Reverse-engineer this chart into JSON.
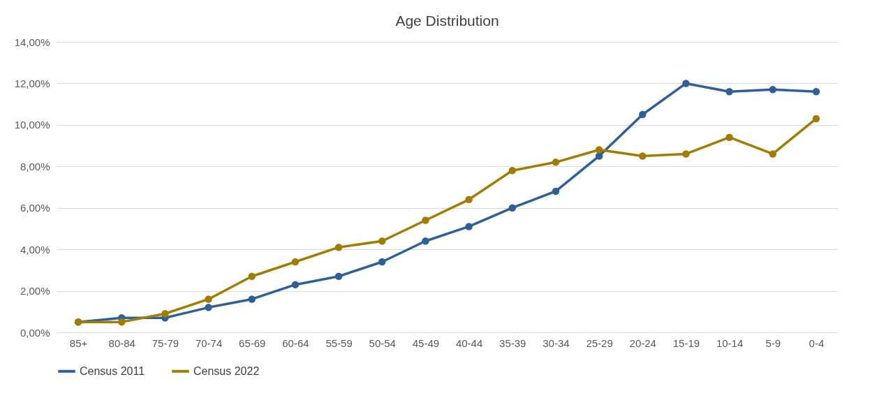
{
  "chart_data": {
    "type": "line",
    "title": "Age Distribution",
    "categories": [
      "85+",
      "80-84",
      "75-79",
      "70-74",
      "65-69",
      "60-64",
      "55-59",
      "50-54",
      "45-49",
      "40-44",
      "35-39",
      "30-34",
      "25-29",
      "20-24",
      "15-19",
      "10-14",
      "5-9",
      "0-4"
    ],
    "series": [
      {
        "name": "Census 2011",
        "color": "#2e6096",
        "values": [
          0.5,
          0.7,
          0.7,
          1.2,
          1.6,
          2.3,
          2.7,
          3.4,
          4.4,
          5.1,
          6.0,
          6.8,
          8.5,
          10.5,
          12.0,
          11.6,
          11.7,
          11.6
        ]
      },
      {
        "name": "Census 2022",
        "color": "#a07c00",
        "values": [
          0.5,
          0.5,
          0.9,
          1.6,
          2.7,
          3.4,
          4.1,
          4.4,
          5.4,
          6.4,
          7.8,
          8.2,
          8.8,
          8.5,
          8.6,
          9.4,
          8.6,
          10.3
        ]
      }
    ],
    "ylim": [
      0,
      14
    ],
    "yticks": [
      {
        "value": 0,
        "label": "0,00%"
      },
      {
        "value": 2,
        "label": "2,00%"
      },
      {
        "value": 4,
        "label": "4,00%"
      },
      {
        "value": 6,
        "label": "6,00%"
      },
      {
        "value": 8,
        "label": "8,00%"
      },
      {
        "value": 10,
        "label": "10,00%"
      },
      {
        "value": 12,
        "label": "12,00%"
      },
      {
        "value": 14,
        "label": "14,00%"
      }
    ],
    "grid": "y",
    "legend": "bottom",
    "marker": "circle",
    "line_style": "solid"
  }
}
